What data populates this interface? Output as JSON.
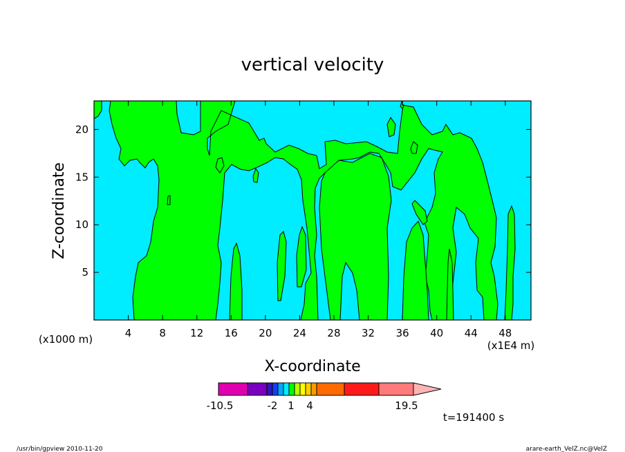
{
  "chart_data": {
    "type": "heatmap",
    "title": "vertical velocity",
    "xlabel": "X-coordinate",
    "ylabel": "Z-coordinate",
    "x_unit_left": "(x1000 m)",
    "x_unit_right": "(x1E4 m)",
    "x_ticks": [
      "4",
      "8",
      "12",
      "16",
      "20",
      "24",
      "28",
      "32",
      "36",
      "40",
      "44",
      "48"
    ],
    "y_ticks": [
      "5",
      "10",
      "15",
      "20"
    ],
    "xlim": [
      0,
      51
    ],
    "ylim": [
      0,
      23
    ],
    "colorbar_labels": [
      "-10.5",
      "-2",
      "1",
      "4",
      "19.5"
    ],
    "colorbar_colors": [
      "#e000b0",
      "#7a00c0",
      "#2a1ab8",
      "#1a3cf0",
      "#00a8ff",
      "#00ecff",
      "#00ff00",
      "#b8ff00",
      "#ffff00",
      "#ffd000",
      "#ff9a00",
      "#ff6a00",
      "#ff1a1a",
      "#ff7a7a",
      "#ffb4b4"
    ],
    "background_fill_color": "#00ecff",
    "positive_fill_color": "#00ff00",
    "time_label": "t=191400 s",
    "footer_left": "/usr/bin/gpview  2010-11-20",
    "footer_right": "arare-earth_VelZ.nc@VelZ",
    "updraft_regions": [
      {
        "x_from": 0.0,
        "x_to": 1.0,
        "z_from": 20.8,
        "z_to": 23.0
      },
      {
        "x_from": 2.0,
        "x_to": 12.0,
        "z_from": 17.0,
        "z_to": 23.0
      },
      {
        "x_from": 4.5,
        "x_to": 15.0,
        "z_from": 0.0,
        "z_to": 17.0
      },
      {
        "x_from": 7.0,
        "x_to": 19.0,
        "z_from": 17.5,
        "z_to": 23.0
      },
      {
        "x_from": 19.0,
        "x_to": 26.5,
        "z_from": 16.0,
        "z_to": 23.0
      },
      {
        "x_from": 25.5,
        "x_to": 35.0,
        "z_from": 17.0,
        "z_to": 23.0
      },
      {
        "x_from": 25.0,
        "x_to": 34.5,
        "z_from": 0.0,
        "z_to": 16.5
      },
      {
        "x_from": 15.5,
        "x_to": 17.8,
        "z_from": 0.0,
        "z_to": 8.0
      },
      {
        "x_from": 21.5,
        "x_to": 22.5,
        "z_from": 2.5,
        "z_to": 9.0
      },
      {
        "x_from": 23.5,
        "x_to": 24.5,
        "z_from": 3.5,
        "z_to": 9.5
      },
      {
        "x_from": 37.3,
        "x_to": 41.0,
        "z_from": 0.0,
        "z_to": 10.5
      },
      {
        "x_from": 37.0,
        "x_to": 38.0,
        "z_from": 14.0,
        "z_to": 22.5
      },
      {
        "x_from": 40.5,
        "x_to": 46.0,
        "z_from": 0.0,
        "z_to": 22.0
      },
      {
        "x_from": 44.0,
        "x_to": 47.5,
        "z_from": 0.0,
        "z_to": 12.0
      },
      {
        "x_from": 47.0,
        "x_to": 49.5,
        "z_from": 0.0,
        "z_to": 12.0
      }
    ]
  }
}
